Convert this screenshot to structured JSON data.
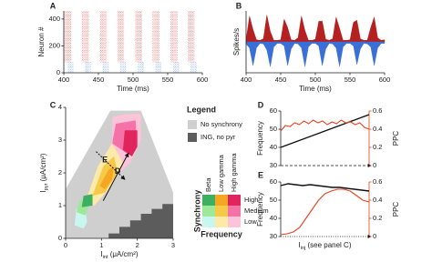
{
  "chart_data": [
    {
      "type": "raster",
      "panel": "A",
      "xlabel": "Time (ms)",
      "ylabel": "Neuron #",
      "xlim": [
        400,
        600
      ],
      "xticks": [
        400,
        450,
        500,
        550,
        600
      ],
      "ylim": [
        0,
        460
      ],
      "yticks": [
        0,
        200,
        400
      ],
      "series": [
        {
          "color": "#d64545",
          "neurons": [
            80,
            460
          ],
          "bursts": [
            [
              401,
              411
            ],
            [
              426,
              436
            ],
            [
              452,
              462
            ],
            [
              477,
              487
            ],
            [
              503,
              513
            ],
            [
              528,
              538
            ],
            [
              554,
              564
            ],
            [
              579,
              589
            ]
          ]
        },
        {
          "color": "#5b8fdc",
          "neurons": [
            0,
            80
          ],
          "bursts": [
            [
              405,
              414
            ],
            [
              430,
              439
            ],
            [
              456,
              465
            ],
            [
              481,
              490
            ],
            [
              507,
              516
            ],
            [
              532,
              541
            ],
            [
              558,
              567
            ],
            [
              583,
              592
            ]
          ]
        }
      ]
    },
    {
      "type": "area",
      "panel": "B",
      "xlabel": "Time (ms)",
      "ylabel": "Spikes/s",
      "xlim": [
        400,
        600
      ],
      "xticks": [
        400,
        450,
        500,
        550,
        600
      ],
      "ylim": [
        -300,
        300
      ],
      "x": [
        400,
        405,
        410,
        415,
        420,
        425,
        430,
        435,
        440,
        445,
        450,
        455,
        460,
        465,
        470,
        475,
        480,
        485,
        490,
        495,
        500,
        505,
        510,
        515,
        520,
        525,
        530,
        535,
        540,
        545,
        550,
        555,
        560,
        565,
        570,
        575,
        580,
        585,
        590,
        595,
        600
      ],
      "series": [
        {
          "color": "#b52020",
          "values": [
            20,
            250,
            120,
            20,
            15,
            30,
            260,
            100,
            15,
            15,
            20,
            220,
            140,
            20,
            15,
            40,
            250,
            110,
            15,
            15,
            25,
            200,
            200,
            25,
            15,
            30,
            240,
            130,
            15,
            15,
            20,
            190,
            210,
            30,
            15,
            15,
            140,
            240,
            40,
            15,
            20
          ]
        },
        {
          "color": "#3a6fd8",
          "values": [
            -20,
            -60,
            -230,
            -60,
            -15,
            -20,
            -80,
            -240,
            -50,
            -15,
            -15,
            -40,
            -230,
            -70,
            -15,
            -20,
            -60,
            -240,
            -50,
            -15,
            -15,
            -40,
            -230,
            -70,
            -15,
            -20,
            -60,
            -240,
            -50,
            -15,
            -15,
            -40,
            -220,
            -70,
            -15,
            -20,
            -50,
            -230,
            -60,
            -15,
            -15
          ]
        }
      ]
    },
    {
      "type": "regions",
      "panel": "C",
      "xlabel": {
        "text": "I",
        "sub": "int",
        "rest": " (μA/cm²)"
      },
      "ylabel": {
        "text": "I",
        "sub": "pyr",
        "rest": " (μA/cm²)"
      },
      "xlim": [
        0,
        3
      ],
      "xticks": [
        0,
        1,
        2,
        3
      ],
      "ylim": [
        0,
        4
      ],
      "yticks": [
        0,
        1,
        2,
        3,
        4
      ],
      "regions": [
        {
          "color": "#cfcfcf",
          "x": [
            0,
            3,
            3,
            2.1,
            1.25,
            0
          ],
          "y": [
            0,
            0,
            1.4,
            3.9,
            3.9,
            1.5
          ]
        },
        {
          "color": "#5c5c5c",
          "x": [
            1.2,
            3,
            3,
            2.7,
            2.7,
            2.4,
            2.4,
            2.1,
            2.1,
            1.8,
            1.8,
            1.5,
            1.5,
            1.2
          ],
          "y": [
            0,
            0,
            1.05,
            1.05,
            0.9,
            0.9,
            0.75,
            0.75,
            0.55,
            0.55,
            0.35,
            0.35,
            0.15,
            0.15
          ]
        },
        {
          "color": "#fbc4d8",
          "x": [
            1.1,
            1.3,
            1.3,
            1.7,
            2.1,
            2.1,
            1.8,
            1.5
          ],
          "y": [
            2.4,
            3.0,
            3.7,
            3.8,
            3.8,
            3.0,
            2.3,
            2.0
          ]
        },
        {
          "color": "#f472a8",
          "x": [
            1.3,
            1.4,
            1.95,
            2.0,
            1.7
          ],
          "y": [
            2.9,
            3.5,
            3.6,
            2.8,
            2.6
          ]
        },
        {
          "color": "#e0245e",
          "x": [
            1.6,
            1.65,
            2.0,
            2.0,
            1.85
          ],
          "y": [
            2.7,
            3.3,
            3.3,
            2.8,
            2.5
          ]
        },
        {
          "color": "#fde9a8",
          "x": [
            0.55,
            0.9,
            1.3,
            1.6,
            1.2,
            0.8
          ],
          "y": [
            1.1,
            2.2,
            2.9,
            2.3,
            1.5,
            1.0
          ]
        },
        {
          "color": "#f7c948",
          "x": [
            0.75,
            1.05,
            1.35,
            1.45,
            1.1
          ],
          "y": [
            1.3,
            2.2,
            2.5,
            2.0,
            1.4
          ]
        },
        {
          "color": "#f5a623",
          "x": [
            0.95,
            1.2,
            1.35,
            1.3,
            1.1
          ],
          "y": [
            1.6,
            2.1,
            2.2,
            1.8,
            1.5
          ]
        },
        {
          "color": "#c8f7f0",
          "x": [
            0.25,
            0.3,
            0.55,
            0.6,
            0.5
          ],
          "y": [
            0.4,
            0.9,
            0.9,
            0.5,
            0.3
          ]
        },
        {
          "color": "#9ee89a",
          "x": [
            0.3,
            0.4,
            0.65,
            0.55
          ],
          "y": [
            0.8,
            1.2,
            1.0,
            0.7
          ]
        },
        {
          "color": "#3cb060",
          "x": [
            0.45,
            0.5,
            0.75,
            0.75
          ],
          "y": [
            0.95,
            1.3,
            1.35,
            1.0
          ]
        }
      ],
      "arrows": [
        {
          "label": "E",
          "dashed": true,
          "x": [
            0.85,
            1.65
          ],
          "y": [
            2.65,
            1.8
          ]
        },
        {
          "label": "D",
          "dashed": false,
          "x": [
            1.05,
            1.75
          ],
          "y": [
            1.15,
            2.6
          ]
        }
      ],
      "legend": {
        "title": "Legend",
        "entries": [
          {
            "label": "No synchrony",
            "color": "#cfcfcf"
          },
          {
            "label": "ING, no pyr",
            "color": "#5c5c5c"
          }
        ],
        "columns": [
          "Beta",
          "Low gamma",
          "High gamma"
        ],
        "rows": [
          "High",
          "Medium",
          "Low"
        ],
        "colors": [
          [
            "#3cb060",
            "#f5a623",
            "#e0245e"
          ],
          [
            "#9ee89a",
            "#f7c948",
            "#f472a8"
          ],
          [
            "#c8f7f0",
            "#fde9a8",
            "#fbc4d8"
          ]
        ],
        "row_title": "Synchrony",
        "column_title": "Frequency"
      }
    },
    {
      "type": "dual_line",
      "panel": "D",
      "ylabel": "Frequency",
      "y2label": "PPC",
      "x_arrow": "dashed",
      "ylim": [
        30,
        60
      ],
      "yticks": [
        30,
        40,
        50,
        60
      ],
      "y2lim": [
        0,
        0.6
      ],
      "y2ticks": [
        0,
        0.2,
        0.4,
        0.6
      ],
      "series": [
        {
          "color": "#111111",
          "values": [
            40,
            41.5,
            43,
            44.5,
            46,
            47.5,
            49,
            50.5,
            52,
            53.5,
            55,
            56.5,
            58
          ]
        },
        {
          "color": "#e8401c",
          "axis": "y2",
          "values": [
            0.38,
            0.44,
            0.43,
            0.47,
            0.45,
            0.49,
            0.46,
            0.5,
            0.47,
            0.49,
            0.45,
            0.48,
            0.46,
            0.5,
            0.47,
            0.48,
            0.45,
            0.47,
            0.42,
            0.4
          ]
        }
      ]
    },
    {
      "type": "dual_line",
      "panel": "E",
      "ylabel": "Frequency",
      "y2label": "PPC",
      "x_arrow": "dotted",
      "xlabel": {
        "text": "I",
        "sub": "inj",
        "rest": " (see panel C)"
      },
      "ylim": [
        30,
        60
      ],
      "yticks": [
        30,
        40,
        50,
        60
      ],
      "y2lim": [
        0,
        0.6
      ],
      "y2ticks": [
        0,
        0.2,
        0.4,
        0.6
      ],
      "series": [
        {
          "color": "#111111",
          "values": [
            58,
            59,
            58.5,
            58,
            58.5,
            58,
            57.5,
            57,
            57,
            56.5,
            56,
            55.5,
            55
          ]
        },
        {
          "color": "#e8401c",
          "axis": "y2",
          "values": [
            0.02,
            0.03,
            0.05,
            0.1,
            0.2,
            0.3,
            0.4,
            0.47,
            0.5,
            0.52,
            0.52,
            0.5,
            0.45,
            0.4,
            0.38
          ]
        }
      ]
    }
  ]
}
